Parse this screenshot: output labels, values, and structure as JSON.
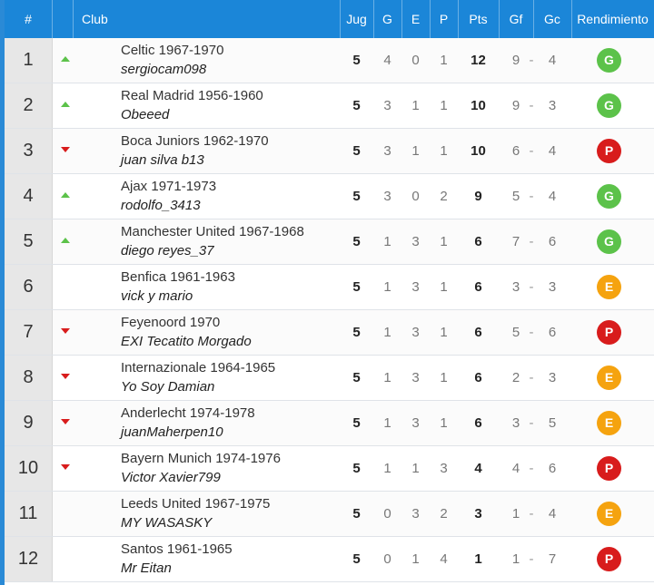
{
  "header": {
    "pos": "#",
    "club": "Club",
    "jug": "Jug",
    "g": "G",
    "e": "E",
    "p": "P",
    "pts": "Pts",
    "gf": "Gf",
    "gc": "Gc",
    "rendimiento": "Rendimiento"
  },
  "colors": {
    "header_bg": "#1b86d8",
    "trend_up": "#5cc24a",
    "trend_down": "#d81c1c",
    "badge_G": "#5cc24a",
    "badge_E": "#f5a30f",
    "badge_P": "#d81c1c"
  },
  "rows": [
    {
      "pos": "1",
      "trend": "up",
      "club": "Celtic 1967-1970",
      "user": "sergiocam098",
      "jug": "5",
      "g": "4",
      "e": "0",
      "p": "1",
      "pts": "12",
      "gf": "9",
      "gc": "4",
      "rend": "G"
    },
    {
      "pos": "2",
      "trend": "up",
      "club": "Real Madrid 1956-1960",
      "user": "Obeeed",
      "jug": "5",
      "g": "3",
      "e": "1",
      "p": "1",
      "pts": "10",
      "gf": "9",
      "gc": "3",
      "rend": "G"
    },
    {
      "pos": "3",
      "trend": "down",
      "club": "Boca Juniors 1962-1970",
      "user": "juan silva b13",
      "jug": "5",
      "g": "3",
      "e": "1",
      "p": "1",
      "pts": "10",
      "gf": "6",
      "gc": "4",
      "rend": "P"
    },
    {
      "pos": "4",
      "trend": "up",
      "club": "Ajax 1971-1973",
      "user": "rodolfo_3413",
      "jug": "5",
      "g": "3",
      "e": "0",
      "p": "2",
      "pts": "9",
      "gf": "5",
      "gc": "4",
      "rend": "G"
    },
    {
      "pos": "5",
      "trend": "up",
      "club": "Manchester United 1967-1968",
      "user": "diego reyes_37",
      "jug": "5",
      "g": "1",
      "e": "3",
      "p": "1",
      "pts": "6",
      "gf": "7",
      "gc": "6",
      "rend": "G"
    },
    {
      "pos": "6",
      "trend": "none",
      "club": "Benfica 1961-1963",
      "user": "vick y mario",
      "jug": "5",
      "g": "1",
      "e": "3",
      "p": "1",
      "pts": "6",
      "gf": "3",
      "gc": "3",
      "rend": "E"
    },
    {
      "pos": "7",
      "trend": "down",
      "club": "Feyenoord 1970",
      "user": "EXI Tecatito Morgado",
      "jug": "5",
      "g": "1",
      "e": "3",
      "p": "1",
      "pts": "6",
      "gf": "5",
      "gc": "6",
      "rend": "P"
    },
    {
      "pos": "8",
      "trend": "down",
      "club": "Internazionale 1964-1965",
      "user": "Yo Soy Damian",
      "jug": "5",
      "g": "1",
      "e": "3",
      "p": "1",
      "pts": "6",
      "gf": "2",
      "gc": "3",
      "rend": "E"
    },
    {
      "pos": "9",
      "trend": "down",
      "club": "Anderlecht 1974-1978",
      "user": "juanMaherpen10",
      "jug": "5",
      "g": "1",
      "e": "3",
      "p": "1",
      "pts": "6",
      "gf": "3",
      "gc": "5",
      "rend": "E"
    },
    {
      "pos": "10",
      "trend": "down",
      "club": "Bayern Munich 1974-1976",
      "user": "Victor Xavier799",
      "jug": "5",
      "g": "1",
      "e": "1",
      "p": "3",
      "pts": "4",
      "gf": "4",
      "gc": "6",
      "rend": "P"
    },
    {
      "pos": "11",
      "trend": "none",
      "club": "Leeds United 1967-1975",
      "user": "MY WASASKY",
      "jug": "5",
      "g": "0",
      "e": "3",
      "p": "2",
      "pts": "3",
      "gf": "1",
      "gc": "4",
      "rend": "E"
    },
    {
      "pos": "12",
      "trend": "none",
      "club": "Santos 1961-1965",
      "user": "Mr Eitan",
      "jug": "5",
      "g": "0",
      "e": "1",
      "p": "4",
      "pts": "1",
      "gf": "1",
      "gc": "7",
      "rend": "P"
    }
  ]
}
